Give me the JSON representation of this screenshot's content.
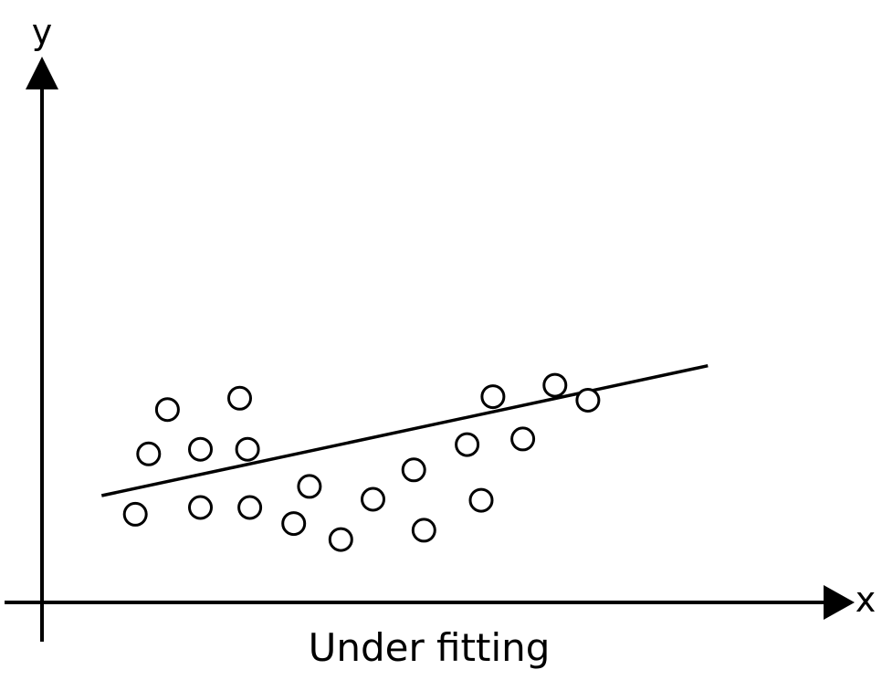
{
  "labels": {
    "y_axis": "y",
    "x_axis": "x",
    "caption": "Under fitting"
  },
  "style": {
    "stroke_color": "#000000",
    "point_fill": "#ffffff",
    "background": "#ffffff"
  },
  "chart_data": {
    "type": "scatter",
    "title": "",
    "xlabel": "x",
    "ylabel": "y",
    "xlim": [
      0,
      100
    ],
    "ylim": [
      0,
      100
    ],
    "grid": false,
    "points": [
      {
        "x": 11.9,
        "y": 17.1
      },
      {
        "x": 13.6,
        "y": 28.8
      },
      {
        "x": 16.0,
        "y": 37.4
      },
      {
        "x": 20.2,
        "y": 18.4
      },
      {
        "x": 20.2,
        "y": 29.7
      },
      {
        "x": 25.2,
        "y": 39.6
      },
      {
        "x": 26.5,
        "y": 18.4
      },
      {
        "x": 26.2,
        "y": 29.7
      },
      {
        "x": 32.1,
        "y": 15.3
      },
      {
        "x": 34.1,
        "y": 22.5
      },
      {
        "x": 38.1,
        "y": 12.2
      },
      {
        "x": 42.2,
        "y": 20.0
      },
      {
        "x": 47.4,
        "y": 25.7
      },
      {
        "x": 48.7,
        "y": 14.0
      },
      {
        "x": 54.2,
        "y": 30.6
      },
      {
        "x": 56.0,
        "y": 19.8
      },
      {
        "x": 57.5,
        "y": 39.9
      },
      {
        "x": 61.3,
        "y": 31.7
      },
      {
        "x": 65.4,
        "y": 42.1
      },
      {
        "x": 69.6,
        "y": 39.2
      }
    ],
    "fit_line": {
      "from": {
        "x": 7.6,
        "y": 20.7
      },
      "to": {
        "x": 84.9,
        "y": 45.9
      }
    }
  }
}
